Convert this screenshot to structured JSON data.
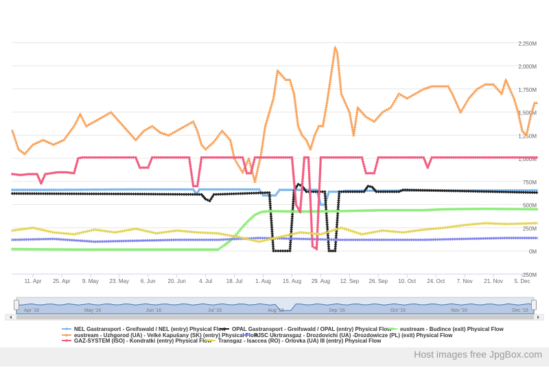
{
  "chart_data": {
    "type": "line",
    "x_ticks": [
      "11. Apr",
      "25. Apr",
      "9. May",
      "23. May",
      "6. Jun",
      "20. Jun",
      "4. Jul",
      "18. Jul",
      "1. Aug",
      "15. Aug",
      "29. Aug",
      "12. Sep",
      "26. Sep",
      "10. Oct",
      "24. Oct",
      "7. Nov",
      "21. Nov",
      "5. Dec"
    ],
    "y_ticks": [
      "-250M",
      "0M",
      "250M",
      "500M",
      "750M",
      "1,000M",
      "1,250M",
      "1,500M",
      "1,750M",
      "2,000M",
      "2,250M"
    ],
    "ylim": [
      -250,
      2400
    ],
    "xlim_days": [
      0,
      255
    ],
    "grid": true,
    "legend_position": "bottom",
    "navigator_labels": [
      "Apr '16",
      "May '16",
      "Jun '16",
      "Jul '16",
      "Aug '16",
      "Sep '16",
      "Oct '16",
      "Nov '16",
      "Dec '16"
    ],
    "series": [
      {
        "name": "NEL Gastransport - Greifswald / NEL (entry) Physical Flow",
        "color": "#7cb5ec",
        "marker": "circle",
        "points": [
          [
            0,
            660
          ],
          [
            20,
            660
          ],
          [
            60,
            665
          ],
          [
            88,
            665
          ],
          [
            89,
            630
          ],
          [
            90,
            630
          ],
          [
            91,
            665
          ],
          [
            120,
            665
          ],
          [
            122,
            600
          ],
          [
            128,
            600
          ],
          [
            130,
            660
          ],
          [
            148,
            660
          ],
          [
            150,
            500
          ],
          [
            152,
            500
          ],
          [
            154,
            640
          ],
          [
            160,
            640
          ],
          [
            162,
            650
          ],
          [
            255,
            655
          ]
        ]
      },
      {
        "name": "OPAL Gastransport - Greifswald / OPAL (entry) Physical Flow",
        "color": "#222222",
        "marker": "diamond",
        "points": [
          [
            0,
            620
          ],
          [
            60,
            615
          ],
          [
            92,
            610
          ],
          [
            94,
            560
          ],
          [
            96,
            540
          ],
          [
            98,
            610
          ],
          [
            125,
            630
          ],
          [
            127,
            0
          ],
          [
            135,
            0
          ],
          [
            137,
            650
          ],
          [
            139,
            720
          ],
          [
            141,
            700
          ],
          [
            143,
            640
          ],
          [
            152,
            640
          ],
          [
            154,
            0
          ],
          [
            157,
            0
          ],
          [
            159,
            640
          ],
          [
            171,
            640
          ],
          [
            173,
            700
          ],
          [
            175,
            690
          ],
          [
            177,
            640
          ],
          [
            188,
            640
          ],
          [
            190,
            660
          ],
          [
            255,
            630
          ]
        ]
      },
      {
        "name": "eustream - Budince (exit) Physical Flow",
        "color": "#90ed7d",
        "marker": "square",
        "points": [
          [
            0,
            20
          ],
          [
            30,
            15
          ],
          [
            60,
            15
          ],
          [
            90,
            15
          ],
          [
            100,
            15
          ],
          [
            103,
            60
          ],
          [
            106,
            110
          ],
          [
            109,
            180
          ],
          [
            112,
            260
          ],
          [
            115,
            330
          ],
          [
            118,
            390
          ],
          [
            121,
            420
          ],
          [
            125,
            430
          ],
          [
            140,
            425
          ],
          [
            160,
            430
          ],
          [
            180,
            440
          ],
          [
            200,
            440
          ],
          [
            210,
            450
          ],
          [
            230,
            455
          ],
          [
            255,
            450
          ]
        ]
      },
      {
        "name": "eustream - Uzhgorod (UA) - Velké Kapušany (SK) (entry) Physical Flow",
        "color": "#f7a35c",
        "marker": "triangle",
        "points": [
          [
            0,
            1300
          ],
          [
            3,
            1100
          ],
          [
            6,
            1050
          ],
          [
            10,
            1150
          ],
          [
            15,
            1200
          ],
          [
            20,
            1150
          ],
          [
            25,
            1200
          ],
          [
            30,
            1350
          ],
          [
            33,
            1480
          ],
          [
            36,
            1350
          ],
          [
            40,
            1400
          ],
          [
            44,
            1450
          ],
          [
            48,
            1500
          ],
          [
            52,
            1400
          ],
          [
            56,
            1300
          ],
          [
            60,
            1200
          ],
          [
            64,
            1300
          ],
          [
            68,
            1350
          ],
          [
            72,
            1280
          ],
          [
            76,
            1250
          ],
          [
            80,
            1300
          ],
          [
            84,
            1350
          ],
          [
            88,
            1400
          ],
          [
            90,
            1300
          ],
          [
            92,
            1150
          ],
          [
            94,
            1100
          ],
          [
            98,
            1180
          ],
          [
            102,
            1300
          ],
          [
            106,
            1200
          ],
          [
            108,
            1000
          ],
          [
            112,
            850
          ],
          [
            115,
            1000
          ],
          [
            118,
            750
          ],
          [
            121,
            1050
          ],
          [
            123,
            1350
          ],
          [
            125,
            1500
          ],
          [
            127,
            1650
          ],
          [
            129,
            1950
          ],
          [
            131,
            1900
          ],
          [
            133,
            1850
          ],
          [
            135,
            1850
          ],
          [
            137,
            1700
          ],
          [
            139,
            1350
          ],
          [
            141,
            1250
          ],
          [
            143,
            1200
          ],
          [
            145,
            1100
          ],
          [
            147,
            1250
          ],
          [
            149,
            1350
          ],
          [
            151,
            1350
          ],
          [
            153,
            1600
          ],
          [
            155,
            1900
          ],
          [
            157,
            2200
          ],
          [
            158,
            2150
          ],
          [
            160,
            1700
          ],
          [
            162,
            1600
          ],
          [
            164,
            1500
          ],
          [
            166,
            1250
          ],
          [
            168,
            1550
          ],
          [
            172,
            1450
          ],
          [
            176,
            1400
          ],
          [
            180,
            1500
          ],
          [
            184,
            1550
          ],
          [
            188,
            1700
          ],
          [
            192,
            1650
          ],
          [
            196,
            1700
          ],
          [
            200,
            1750
          ],
          [
            204,
            1780
          ],
          [
            208,
            1780
          ],
          [
            212,
            1780
          ],
          [
            214,
            1700
          ],
          [
            216,
            1600
          ],
          [
            218,
            1500
          ],
          [
            222,
            1650
          ],
          [
            226,
            1750
          ],
          [
            230,
            1800
          ],
          [
            234,
            1800
          ],
          [
            238,
            1700
          ],
          [
            240,
            1850
          ],
          [
            242,
            1750
          ],
          [
            244,
            1650
          ],
          [
            246,
            1500
          ],
          [
            248,
            1300
          ],
          [
            250,
            1250
          ],
          [
            252,
            1450
          ],
          [
            254,
            1600
          ],
          [
            255,
            1600
          ]
        ]
      },
      {
        "name": "PJSC Ukrtransgaz - Drozdovichi (UA) -Drozdowicze (PL) (exit) Physical Flow",
        "color": "#8085e9",
        "marker": "cross",
        "points": [
          [
            0,
            120
          ],
          [
            20,
            130
          ],
          [
            40,
            100
          ],
          [
            60,
            110
          ],
          [
            80,
            120
          ],
          [
            100,
            120
          ],
          [
            120,
            140
          ],
          [
            140,
            130
          ],
          [
            160,
            120
          ],
          [
            180,
            120
          ],
          [
            200,
            120
          ],
          [
            220,
            130
          ],
          [
            240,
            140
          ],
          [
            255,
            140
          ]
        ]
      },
      {
        "name": "GAZ-SYSTEM (ISO) - Kondratki (entry) Physical Flow",
        "color": "#f15c80",
        "marker": "circle",
        "points": [
          [
            0,
            830
          ],
          [
            4,
            820
          ],
          [
            8,
            830
          ],
          [
            12,
            830
          ],
          [
            14,
            730
          ],
          [
            16,
            830
          ],
          [
            22,
            850
          ],
          [
            26,
            850
          ],
          [
            30,
            840
          ],
          [
            32,
            1000
          ],
          [
            34,
            1010
          ],
          [
            60,
            1010
          ],
          [
            62,
            900
          ],
          [
            66,
            900
          ],
          [
            68,
            1010
          ],
          [
            86,
            1010
          ],
          [
            88,
            700
          ],
          [
            90,
            700
          ],
          [
            92,
            1010
          ],
          [
            112,
            1010
          ],
          [
            114,
            840
          ],
          [
            116,
            840
          ],
          [
            118,
            1010
          ],
          [
            136,
            1010
          ],
          [
            138,
            500
          ],
          [
            140,
            420
          ],
          [
            142,
            1010
          ],
          [
            144,
            1010
          ],
          [
            146,
            50
          ],
          [
            148,
            20
          ],
          [
            150,
            1010
          ],
          [
            170,
            1010
          ],
          [
            172,
            840
          ],
          [
            176,
            840
          ],
          [
            178,
            1010
          ],
          [
            200,
            1010
          ],
          [
            202,
            900
          ],
          [
            204,
            1010
          ],
          [
            255,
            1010
          ]
        ]
      },
      {
        "name": "Transgaz - Isaccea (RO) - Orlovka (UA) III (entry) Physical Flow",
        "color": "#e4d354",
        "marker": "cross",
        "points": [
          [
            0,
            220
          ],
          [
            10,
            250
          ],
          [
            20,
            200
          ],
          [
            30,
            180
          ],
          [
            40,
            230
          ],
          [
            50,
            200
          ],
          [
            60,
            240
          ],
          [
            70,
            190
          ],
          [
            80,
            220
          ],
          [
            90,
            200
          ],
          [
            100,
            190
          ],
          [
            110,
            150
          ],
          [
            120,
            100
          ],
          [
            130,
            150
          ],
          [
            140,
            200
          ],
          [
            150,
            180
          ],
          [
            160,
            250
          ],
          [
            170,
            180
          ],
          [
            180,
            220
          ],
          [
            190,
            200
          ],
          [
            200,
            230
          ],
          [
            210,
            250
          ],
          [
            220,
            280
          ],
          [
            230,
            300
          ],
          [
            240,
            290
          ],
          [
            255,
            300
          ]
        ]
      }
    ]
  },
  "navigator": {
    "color": "#4572a7"
  },
  "watermark": {
    "text": "Host images free JpgBox.com"
  }
}
